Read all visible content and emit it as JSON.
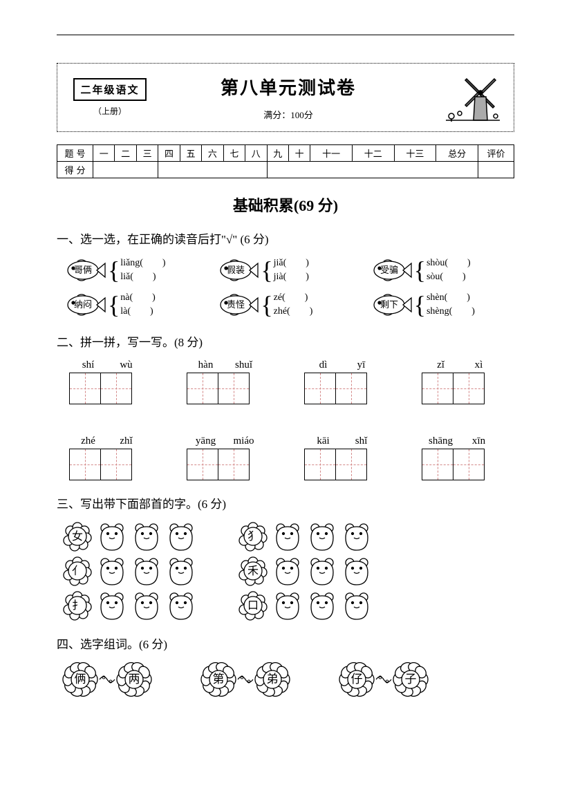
{
  "header": {
    "grade_label": "二年级语文",
    "booklet": "（上册）",
    "title": "第八单元测试卷",
    "full_score_label": "满分：100分"
  },
  "score_table": {
    "row1_label": "题号",
    "row2_label": "得分",
    "cols_a": [
      "一",
      "二",
      "三"
    ],
    "cols_b": [
      "四",
      "五",
      "六",
      "七",
      "八"
    ],
    "cols_c": [
      "九",
      "十",
      "十一",
      "十二",
      "十三",
      "总分"
    ],
    "cols_d": [
      "评价"
    ]
  },
  "section_a": {
    "title": "基础积累(69 分)"
  },
  "q1": {
    "prompt": "一、选一选，在正确的读音后打\"√\" (6 分)",
    "items": [
      {
        "word": "哥俩",
        "opt1": "liǎng(　　)",
        "opt2": "liǎ(　　)"
      },
      {
        "word": "假装",
        "opt1": "jiǎ(　　)",
        "opt2": "jià(　　)"
      },
      {
        "word": "受骗",
        "opt1": "shòu(　　)",
        "opt2": "sòu(　　)"
      },
      {
        "word": "纳闷",
        "opt1": "nà(　　)",
        "opt2": "là(　　)"
      },
      {
        "word": "责怪",
        "opt1": "zé(　　)",
        "opt2": "zhé(　　)"
      },
      {
        "word": "剩下",
        "opt1": "shèn(　　)",
        "opt2": "shèng(　　)"
      }
    ]
  },
  "q2": {
    "prompt": "二、拼一拼，写一写。(8 分)",
    "items": [
      {
        "p1": "shí",
        "p2": "wù"
      },
      {
        "p1": "hàn",
        "p2": "shuǐ"
      },
      {
        "p1": "dì",
        "p2": "yī"
      },
      {
        "p1": "zǐ",
        "p2": "xì"
      },
      {
        "p1": "zhé",
        "p2": "zhǐ"
      },
      {
        "p1": "yāng",
        "p2": "miáo"
      },
      {
        "p1": "kāi",
        "p2": "shǐ"
      },
      {
        "p1": "shāng",
        "p2": "xīn"
      }
    ]
  },
  "q3": {
    "prompt": "三、写出带下面部首的字。(6 分)",
    "radicals_left": [
      "女",
      "亻",
      "扌"
    ],
    "radicals_right": [
      "犭",
      "禾",
      "口"
    ]
  },
  "q4": {
    "prompt": "四、选字组词。(6 分)",
    "pairs": [
      {
        "a": "俩",
        "b": "两"
      },
      {
        "a": "第",
        "b": "弟"
      },
      {
        "a": "仔",
        "b": "子"
      }
    ]
  },
  "colors": {
    "black": "#000000",
    "tian_dash": "#d48888"
  }
}
